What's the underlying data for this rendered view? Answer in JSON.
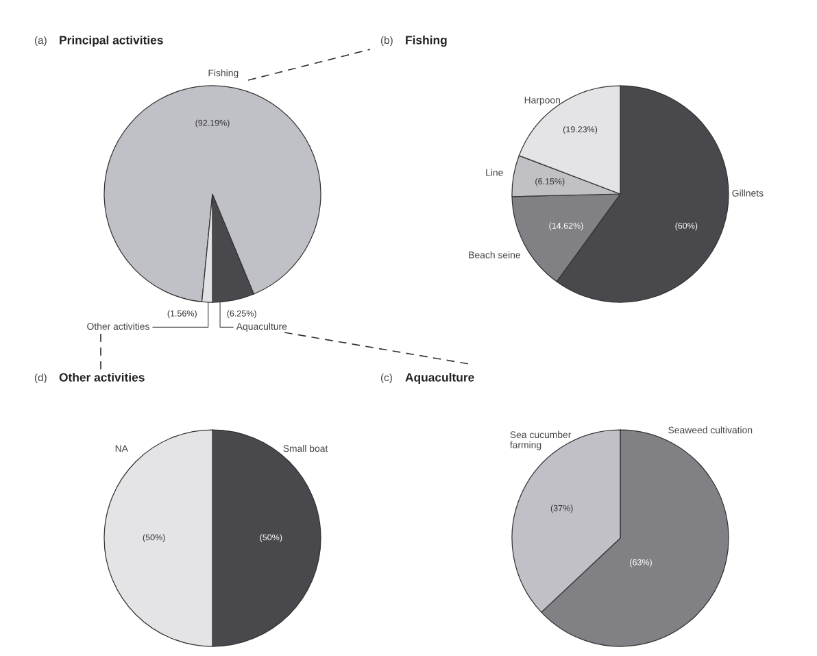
{
  "chart_data": [
    {
      "type": "pie",
      "title": "Principal activities",
      "annotations": [
        "(a)"
      ],
      "categories": [
        "Aquaculture",
        "Fishing",
        "Other activities"
      ],
      "values": [
        6.25,
        92.19,
        1.56
      ],
      "value_labels": [
        "(6.25%)",
        "(92.19%)",
        "(1.56%)"
      ],
      "colors": [
        "#48484d",
        "#c0c1c7",
        "#e2e2e4"
      ]
    },
    {
      "type": "pie",
      "title": "Fishing",
      "annotations": [
        "(b)"
      ],
      "categories": [
        "Gillnets",
        "Beach seine",
        "Line",
        "Harpoon"
      ],
      "values": [
        60,
        14.62,
        6.15,
        19.23
      ],
      "value_labels": [
        "(60%)",
        "(14.62%)",
        "(6.15%)",
        "(19.23%)"
      ],
      "colors": [
        "#48484d",
        "#808085",
        "#c0c0c5",
        "#e4e4e6"
      ]
    },
    {
      "type": "pie",
      "title": "Other activities",
      "annotations": [
        "(d)"
      ],
      "categories": [
        "Small boat",
        "NA"
      ],
      "values": [
        50,
        50
      ],
      "value_labels": [
        "(50%)",
        "(50%)"
      ],
      "colors": [
        "#48484d",
        "#e4e4e6"
      ]
    },
    {
      "type": "pie",
      "title": "Aquaculture",
      "annotations": [
        "(c)"
      ],
      "categories": [
        "Seaweed cultivation",
        "Sea cucumber\nfarming"
      ],
      "values": [
        63,
        37
      ],
      "value_labels": [
        "(63%)",
        "(37%)"
      ],
      "colors": [
        "#808085",
        "#c0c0c6"
      ]
    }
  ]
}
